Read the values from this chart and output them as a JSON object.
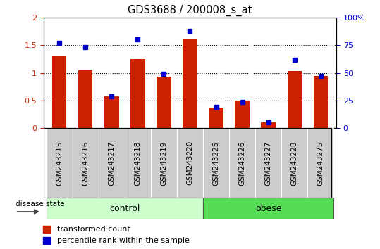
{
  "title": "GDS3688 / 200008_s_at",
  "categories": [
    "GSM243215",
    "GSM243216",
    "GSM243217",
    "GSM243218",
    "GSM243219",
    "GSM243220",
    "GSM243225",
    "GSM243226",
    "GSM243227",
    "GSM243228",
    "GSM243275"
  ],
  "transformed_count": [
    1.3,
    1.05,
    0.57,
    1.25,
    0.93,
    1.6,
    0.37,
    0.5,
    0.1,
    1.03,
    0.94
  ],
  "percentile_rank": [
    77,
    73,
    29,
    80,
    49,
    88,
    19,
    24,
    5,
    62,
    47
  ],
  "ylim_left": [
    0,
    2
  ],
  "ylim_right": [
    0,
    100
  ],
  "yticks_left": [
    0,
    0.5,
    1.0,
    1.5,
    2.0
  ],
  "yticks_right": [
    0,
    25,
    50,
    75,
    100
  ],
  "bar_color": "#cc2200",
  "dot_color": "#0000cc",
  "control_label": "control",
  "obese_label": "obese",
  "disease_state_label": "disease state",
  "legend_red": "transformed count",
  "legend_blue": "percentile rank within the sample",
  "control_color": "#ccffcc",
  "obese_color": "#55dd55",
  "xlabel_area_color": "#cccccc",
  "bar_width": 0.55,
  "n_control": 6,
  "n_total": 11
}
